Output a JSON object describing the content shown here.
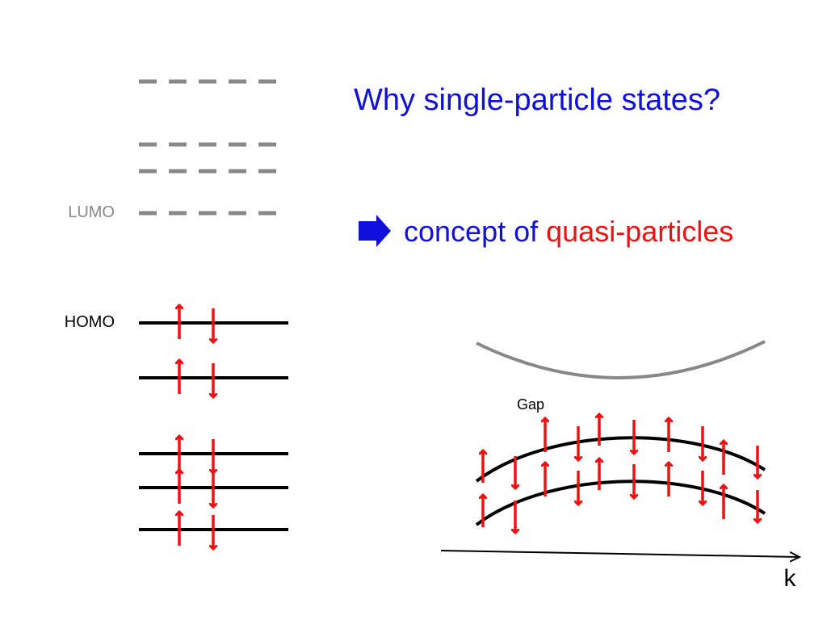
{
  "title": "Why single-particle states?",
  "conclusion": {
    "text": "concept of",
    "highlight": "quasi-particles"
  },
  "levels": {
    "lumo": "LUMO",
    "homo": "HOMO"
  },
  "band_diagram": {
    "gap": "Gap",
    "axis": "k"
  }
}
